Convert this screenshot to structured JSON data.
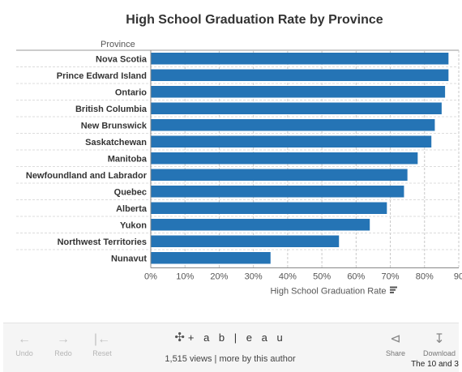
{
  "chart_data": {
    "type": "bar",
    "orientation": "horizontal",
    "title": "High School Graduation Rate by Province",
    "category_axis_label": "Province",
    "xlabel": "High School Graduation Rate",
    "categories": [
      "Nova Scotia",
      "Prince Edward Island",
      "Ontario",
      "British Columbia",
      "New Brunswick",
      "Saskatchewan",
      "Manitoba",
      "Newfoundland and Labrador",
      "Quebec",
      "Alberta",
      "Yukon",
      "Northwest Territories",
      "Nunavut"
    ],
    "values": [
      87,
      87,
      86,
      85,
      83,
      82,
      78,
      75,
      74,
      69,
      64,
      55,
      35
    ],
    "xlim": [
      0,
      90
    ],
    "x_ticks": [
      "0%",
      "10%",
      "20%",
      "30%",
      "40%",
      "50%",
      "60%",
      "70%",
      "80%",
      "90"
    ],
    "grid": true,
    "bar_color": "#2574b5"
  },
  "toolbar": {
    "undo_label": "Undo",
    "redo_label": "Redo",
    "reset_label": "Reset",
    "brand": "+ a b | e a u",
    "views_text": "1,515 views | more by this author",
    "share_label": "Share",
    "download_label": "Download"
  },
  "caption": "The 10 and 3"
}
